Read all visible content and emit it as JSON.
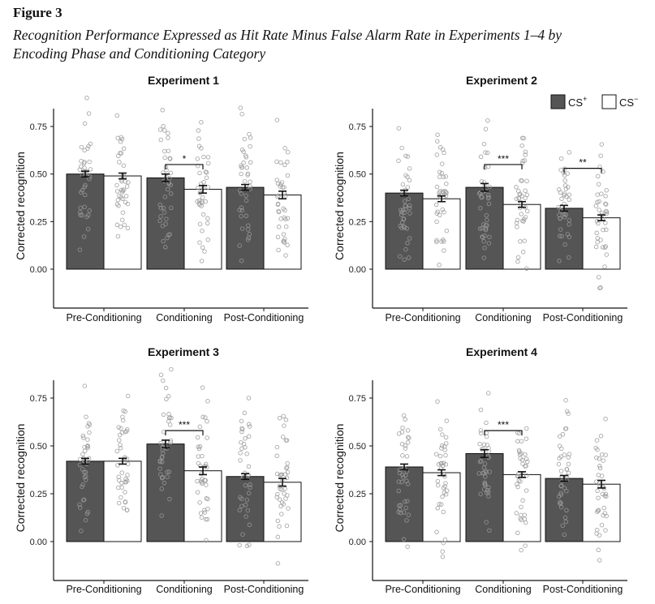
{
  "figure": {
    "label": "Figure 3",
    "caption_line1": "Recognition Performance Expressed as Hit Rate Minus False Alarm Rate in Experiments 1–4 by",
    "caption_line2": "Encoding Phase and Conditioning Category"
  },
  "colors": {
    "cs_plus": "#555555",
    "cs_minus": "#ffffff",
    "points": "#9a9a9a"
  },
  "chart_data": [
    {
      "type": "bar",
      "title": "Experiment 1",
      "ylabel": "Corrected recognition",
      "categories": [
        "Pre-Conditioning",
        "Conditioning",
        "Post-Conditioning"
      ],
      "ylim": [
        -0.2,
        0.85
      ],
      "yticks": [
        "0.00",
        "0.25",
        "0.50",
        "0.75"
      ],
      "series": [
        {
          "name": "CS",
          "sup": "+",
          "values": [
            0.5,
            0.48,
            0.43
          ],
          "errors": [
            0.015,
            0.02,
            0.015
          ]
        },
        {
          "name": "CS",
          "sup": "−",
          "values": [
            0.49,
            0.42,
            0.39
          ],
          "errors": [
            0.015,
            0.02,
            0.02
          ]
        }
      ],
      "significance": [
        {
          "category": "Conditioning",
          "label": "*",
          "y": 0.55
        }
      ],
      "legend": "none"
    },
    {
      "type": "bar",
      "title": "Experiment 2",
      "ylabel": "Corrected recognition",
      "categories": [
        "Pre-Conditioning",
        "Conditioning",
        "Post-Conditioning"
      ],
      "ylim": [
        -0.2,
        0.85
      ],
      "yticks": [
        "0.00",
        "0.25",
        "0.50",
        "0.75"
      ],
      "series": [
        {
          "name": "CS",
          "sup": "+",
          "values": [
            0.4,
            0.43,
            0.32
          ],
          "errors": [
            0.015,
            0.02,
            0.015
          ]
        },
        {
          "name": "CS",
          "sup": "−",
          "values": [
            0.37,
            0.34,
            0.27
          ],
          "errors": [
            0.015,
            0.015,
            0.015
          ]
        }
      ],
      "significance": [
        {
          "category": "Conditioning",
          "label": "***",
          "y": 0.55
        },
        {
          "category": "Post-Conditioning",
          "label": "**",
          "y": 0.53
        }
      ],
      "legend": "top-right"
    },
    {
      "type": "bar",
      "title": "Experiment 3",
      "ylabel": "Corrected recognition",
      "categories": [
        "Pre-Conditioning",
        "Conditioning",
        "Post-Conditioning"
      ],
      "ylim": [
        -0.2,
        0.85
      ],
      "yticks": [
        "0.00",
        "0.25",
        "0.50",
        "0.75"
      ],
      "series": [
        {
          "name": "CS",
          "sup": "+",
          "values": [
            0.42,
            0.51,
            0.34
          ],
          "errors": [
            0.015,
            0.02,
            0.015
          ]
        },
        {
          "name": "CS",
          "sup": "−",
          "values": [
            0.42,
            0.37,
            0.31
          ],
          "errors": [
            0.015,
            0.02,
            0.02
          ]
        }
      ],
      "significance": [
        {
          "category": "Conditioning",
          "label": "***",
          "y": 0.58
        }
      ],
      "legend": "none"
    },
    {
      "type": "bar",
      "title": "Experiment 4",
      "ylabel": "Corrected recognition",
      "categories": [
        "Pre-Conditioning",
        "Conditioning",
        "Post-Conditioning"
      ],
      "ylim": [
        -0.2,
        0.85
      ],
      "yticks": [
        "0.00",
        "0.25",
        "0.50",
        "0.75"
      ],
      "series": [
        {
          "name": "CS",
          "sup": "+",
          "values": [
            0.39,
            0.46,
            0.33
          ],
          "errors": [
            0.015,
            0.02,
            0.015
          ]
        },
        {
          "name": "CS",
          "sup": "−",
          "values": [
            0.36,
            0.35,
            0.3
          ],
          "errors": [
            0.015,
            0.015,
            0.02
          ]
        }
      ],
      "significance": [
        {
          "category": "Conditioning",
          "label": "***",
          "y": 0.58
        }
      ],
      "legend": "none"
    }
  ]
}
